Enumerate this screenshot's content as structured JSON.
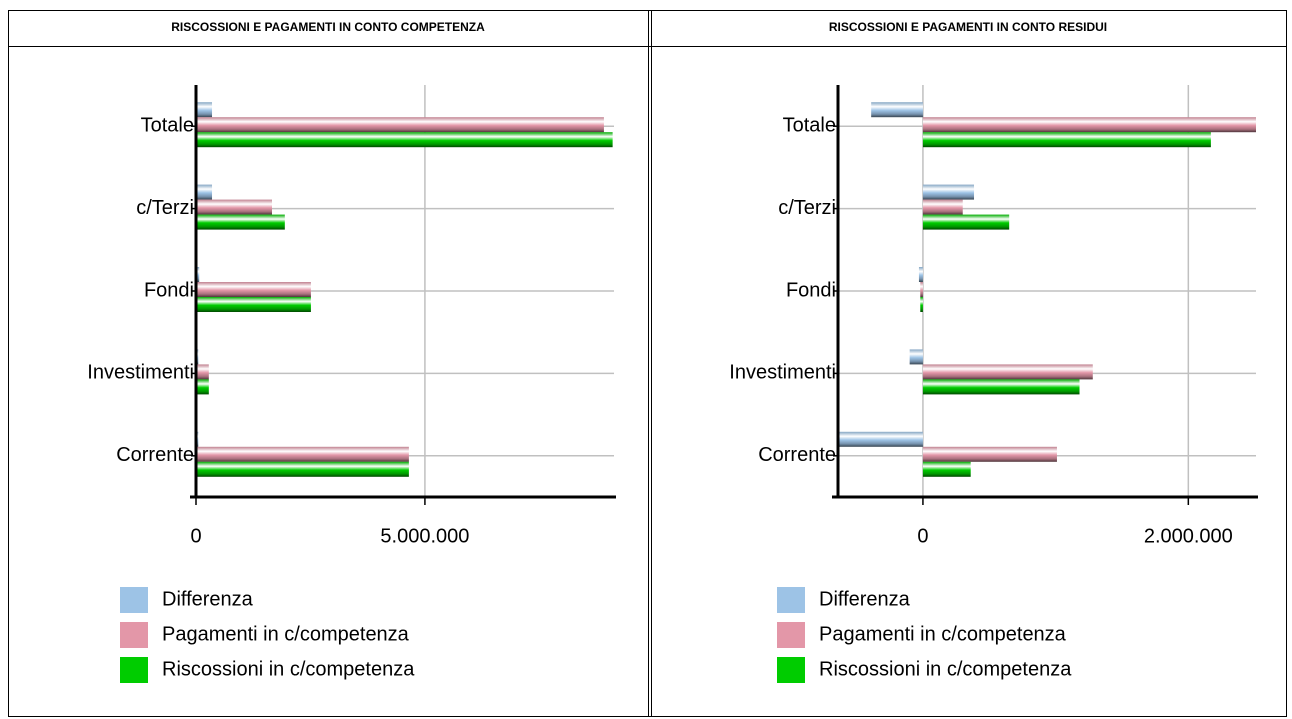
{
  "chart_data": [
    {
      "type": "bar",
      "orientation": "horizontal",
      "title": "RISCOSSIONI E PAGAMENTI IN CONTO COMPETENZA",
      "categories": [
        "Totale",
        "c/Terzi",
        "Fondi",
        "Investimenti",
        "Corrente"
      ],
      "series": [
        {
          "name": "Differenza",
          "color": "#9dc3e6",
          "values": [
            350000,
            350000,
            70000,
            50000,
            50000
          ]
        },
        {
          "name": "Pagamenti in c/competenza",
          "color": "#e397a8",
          "values": [
            8910000,
            1660000,
            2510000,
            280000,
            4650000
          ]
        },
        {
          "name": "Riscossioni in c/competenza",
          "color": "#00cc00",
          "values": [
            9100000,
            1940000,
            2510000,
            280000,
            4650000
          ]
        }
      ],
      "xlim": [
        0,
        9130000
      ],
      "xticks": [
        0,
        {
          "value": 5000000,
          "label": "5.000.000"
        }
      ],
      "grid": true,
      "legend": "bottom"
    },
    {
      "type": "bar",
      "orientation": "horizontal",
      "title": "RISCOSSIONI E PAGAMENTI IN CONTO RESIDUI",
      "categories": [
        "Totale",
        "c/Terzi",
        "Fondi",
        "Investimenti",
        "Corrente"
      ],
      "series": [
        {
          "name": "Differenza",
          "color": "#9dc3e6",
          "values": [
            -390000,
            385000,
            -30000,
            -100000,
            -640000
          ]
        },
        {
          "name": "Pagamenti in c/competenza",
          "color": "#e397a8",
          "values": [
            2510000,
            300000,
            -20000,
            1280000,
            1010000
          ]
        },
        {
          "name": "Riscossioni in c/competenza",
          "color": "#00cc00",
          "values": [
            2170000,
            650000,
            -20000,
            1180000,
            360000
          ]
        }
      ],
      "xlim": [
        -640000,
        2510000
      ],
      "xticks": [
        0,
        {
          "value": 2000000,
          "label": "2.000.000"
        }
      ],
      "grid": true,
      "legend": "bottom"
    }
  ]
}
